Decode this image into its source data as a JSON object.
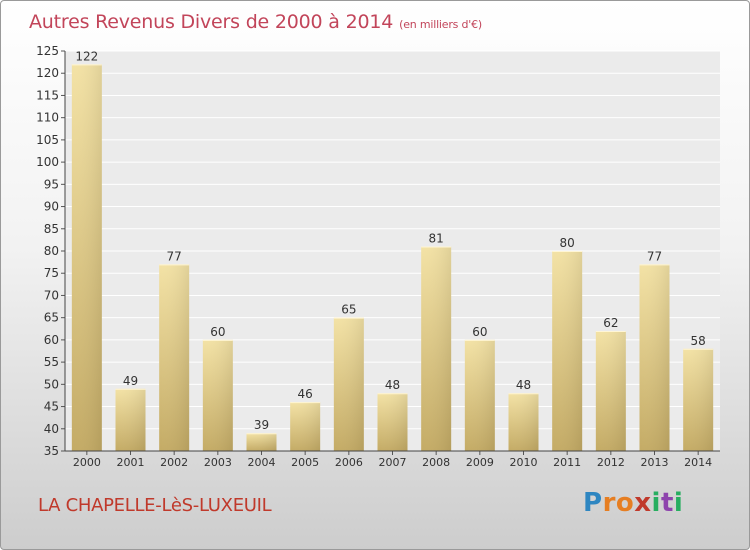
{
  "header": {
    "title": "Autres Revenus Divers de 2000 à 2014",
    "unit": "(en milliers d'€)"
  },
  "footer": {
    "location": "LA CHAPELLE-LèS-LUXEUIL",
    "logo_letters": [
      "P",
      "r",
      "o",
      "x",
      "i",
      "t",
      "i"
    ],
    "logo_colors": [
      "#2e86c1",
      "#e67e22",
      "#e67e22",
      "#c0392b",
      "#27ae60",
      "#8e44ad",
      "#27ae60"
    ]
  },
  "chart_data": {
    "type": "bar",
    "title": "Autres Revenus Divers de 2000 à 2014",
    "subtitle": "(en milliers d'€)",
    "categories": [
      "2000",
      "2001",
      "2002",
      "2003",
      "2004",
      "2005",
      "2006",
      "2007",
      "2008",
      "2009",
      "2010",
      "2011",
      "2012",
      "2013",
      "2014"
    ],
    "values": [
      122,
      49,
      77,
      60,
      39,
      46,
      65,
      48,
      81,
      60,
      48,
      80,
      62,
      77,
      58
    ],
    "ylim": [
      35,
      125
    ],
    "yticks": [
      35,
      40,
      45,
      50,
      55,
      60,
      65,
      70,
      75,
      80,
      85,
      90,
      95,
      100,
      105,
      110,
      115,
      120,
      125
    ],
    "grid": true,
    "bar_colors": {
      "light": "#f3e2a5",
      "dark": "#c4ab65"
    }
  }
}
